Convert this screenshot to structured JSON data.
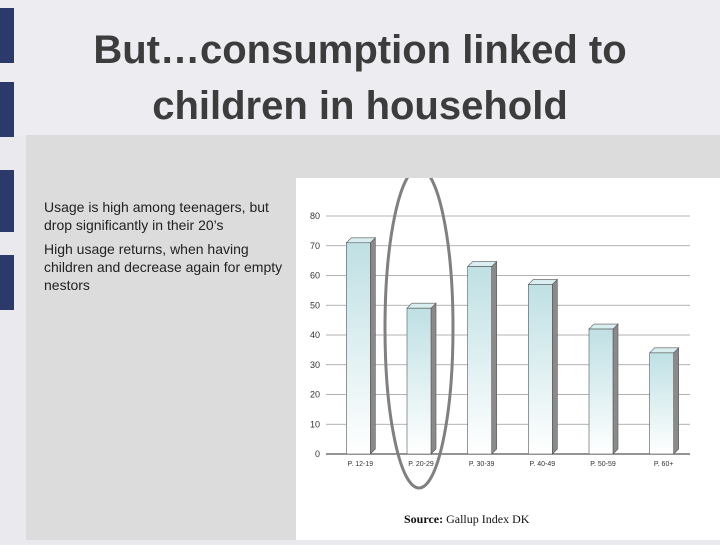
{
  "slide": {
    "title_line1": "But…consumption linked to",
    "title_line2": "children in household",
    "bullets": [
      "Usage is high among teenagers, but drop significantly in their 20’s",
      "High usage returns, when having children and decrease again for empty nestors"
    ],
    "source_label": "Source:",
    "source_text": "Gallup Index DK"
  },
  "colors": {
    "accent": "#2b3a6b",
    "bar_top": "#bfe0e4",
    "bar_bottom": "#ffffff",
    "highlight_ellipse": "#808080"
  },
  "chart_data": {
    "type": "bar",
    "categories": [
      "P. 12-19",
      "P. 20-29",
      "P. 30-39",
      "P. 40-49",
      "P. 50-59",
      "P. 60+"
    ],
    "values": [
      71,
      49,
      63,
      57,
      42,
      34
    ],
    "ylim": [
      0,
      80
    ],
    "yticks": [
      0,
      10,
      20,
      30,
      40,
      50,
      60,
      70,
      80
    ],
    "grid": true,
    "highlight_category": "P. 20-29"
  }
}
